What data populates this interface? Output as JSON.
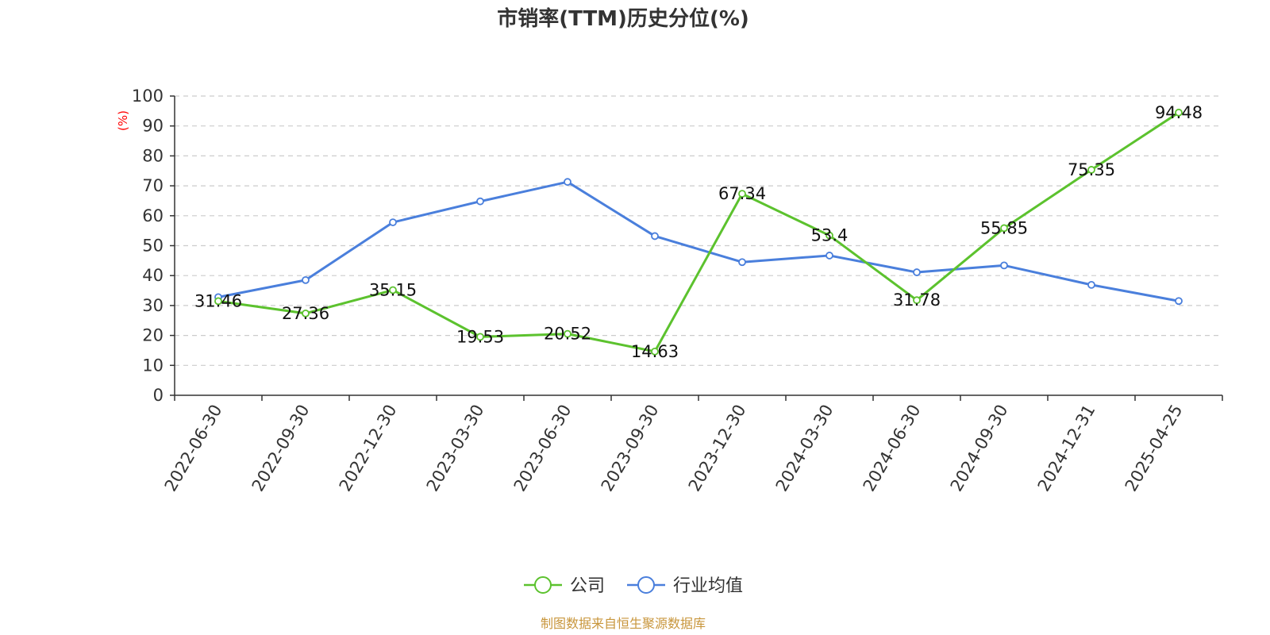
{
  "chart_data": {
    "type": "line",
    "title": "市销率(TTM)历史分位(%)",
    "ylabel": "(%)",
    "ylim": [
      0,
      100
    ],
    "yticks": [
      0,
      10,
      20,
      30,
      40,
      50,
      60,
      70,
      80,
      90,
      100
    ],
    "grid": true,
    "categories": [
      "2022-06-30",
      "2022-09-30",
      "2022-12-30",
      "2023-03-30",
      "2023-06-30",
      "2023-09-30",
      "2023-12-30",
      "2024-03-30",
      "2024-06-30",
      "2024-09-30",
      "2024-12-31",
      "2025-04-25"
    ],
    "series": [
      {
        "name": "公司",
        "color": "#5cc22e",
        "values": [
          31.46,
          27.36,
          35.15,
          19.53,
          20.52,
          14.63,
          67.34,
          53.4,
          31.78,
          55.85,
          75.35,
          94.48
        ],
        "labels": [
          "31.46",
          "27.36",
          "35.15",
          "19.53",
          "20.52",
          "14.63",
          "67.34",
          "53.4",
          "31.78",
          "55.85",
          "75.35",
          "94.48"
        ]
      },
      {
        "name": "行业均值",
        "color": "#4a7fdc",
        "values": [
          32.8,
          38.5,
          57.8,
          64.8,
          71.3,
          53.2,
          44.5,
          46.7,
          41.1,
          43.4,
          36.9,
          31.5
        ]
      }
    ],
    "legend_position": "bottom-center"
  },
  "source_note": "制图数据来自恒生聚源数据库"
}
